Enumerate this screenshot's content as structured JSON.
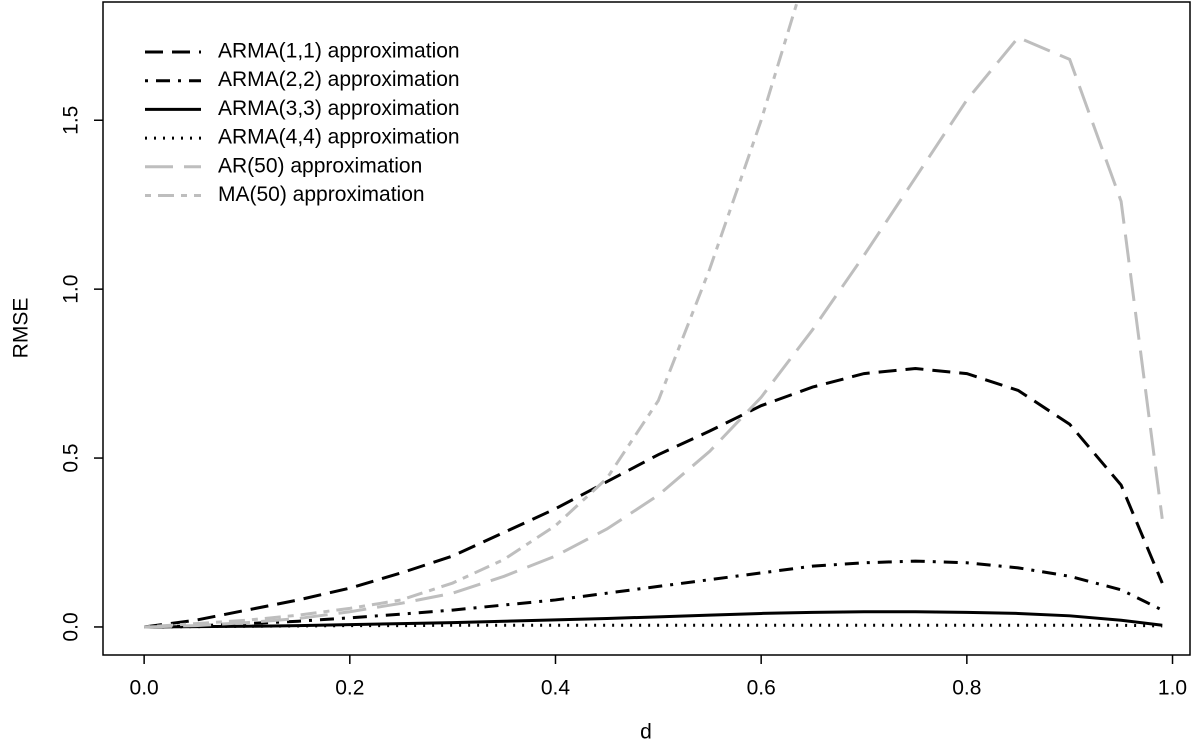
{
  "chart_data": {
    "type": "line",
    "x_label": "d",
    "y_label": "RMSE",
    "x": [
      0,
      0.05,
      0.1,
      0.15,
      0.2,
      0.25,
      0.3,
      0.35,
      0.4,
      0.45,
      0.5,
      0.55,
      0.6,
      0.65,
      0.7,
      0.75,
      0.8,
      0.85,
      0.9,
      0.95,
      0.99
    ],
    "series": [
      {
        "name": "ARMA(1,1) approximation",
        "color": "#000000",
        "linestyle": "dashed",
        "values": [
          0,
          0.02,
          0.05,
          0.08,
          0.115,
          0.16,
          0.21,
          0.28,
          0.35,
          0.43,
          0.51,
          0.58,
          0.655,
          0.71,
          0.75,
          0.765,
          0.75,
          0.7,
          0.6,
          0.42,
          0.13
        ]
      },
      {
        "name": "ARMA(2,2) approximation",
        "color": "#000000",
        "linestyle": "dotdash",
        "values": [
          0,
          0.003,
          0.01,
          0.017,
          0.027,
          0.038,
          0.05,
          0.065,
          0.08,
          0.1,
          0.12,
          0.14,
          0.16,
          0.18,
          0.19,
          0.195,
          0.19,
          0.175,
          0.15,
          0.11,
          0.05
        ]
      },
      {
        "name": "ARMA(3,3) approximation",
        "color": "#000000",
        "linestyle": "solid",
        "values": [
          0,
          0.001,
          0.002,
          0.004,
          0.007,
          0.01,
          0.013,
          0.017,
          0.021,
          0.025,
          0.03,
          0.035,
          0.04,
          0.043,
          0.045,
          0.045,
          0.043,
          0.04,
          0.033,
          0.02,
          0.005
        ]
      },
      {
        "name": "ARMA(4,4) approximation",
        "color": "#000000",
        "linestyle": "dotted",
        "values": [
          0,
          0.001,
          0.002,
          0.003,
          0.004,
          0.004,
          0.005,
          0.005,
          0.005,
          0.005,
          0.005,
          0.005,
          0.005,
          0.005,
          0.005,
          0.005,
          0.005,
          0.005,
          0.005,
          0.005,
          0.003
        ]
      },
      {
        "name": "AR(50) approximation",
        "color": "#bebebe",
        "linestyle": "longdash",
        "values": [
          0,
          0.004,
          0.013,
          0.025,
          0.045,
          0.07,
          0.1,
          0.15,
          0.21,
          0.29,
          0.39,
          0.52,
          0.68,
          0.88,
          1.1,
          1.33,
          1.56,
          1.745,
          1.68,
          1.26,
          0.32
        ]
      },
      {
        "name": "MA(50) approximation",
        "color": "#bebebe",
        "linestyle": "twodash",
        "values": [
          0,
          0.01,
          0.02,
          0.035,
          0.055,
          0.08,
          0.13,
          0.2,
          0.3,
          0.44,
          0.67,
          1.06,
          1.5,
          2.0,
          null,
          null,
          null,
          null,
          null,
          null,
          null
        ]
      }
    ],
    "xlim": [
      -0.04,
      1.017
    ],
    "ylim": [
      -0.083,
      1.85
    ],
    "xticks": [
      {
        "value": 0,
        "label": "0.0"
      },
      {
        "value": 0.2,
        "label": "0.2"
      },
      {
        "value": 0.4,
        "label": "0.4"
      },
      {
        "value": 0.6,
        "label": "0.6"
      },
      {
        "value": 0.8,
        "label": "0.8"
      },
      {
        "value": 1,
        "label": "1.0"
      }
    ],
    "yticks": [
      {
        "value": 0,
        "label": "0.0"
      },
      {
        "value": 0.5,
        "label": "0.5"
      },
      {
        "value": 1,
        "label": "1.0"
      },
      {
        "value": 1.5,
        "label": "1.5"
      }
    ],
    "legend": "top-left"
  }
}
